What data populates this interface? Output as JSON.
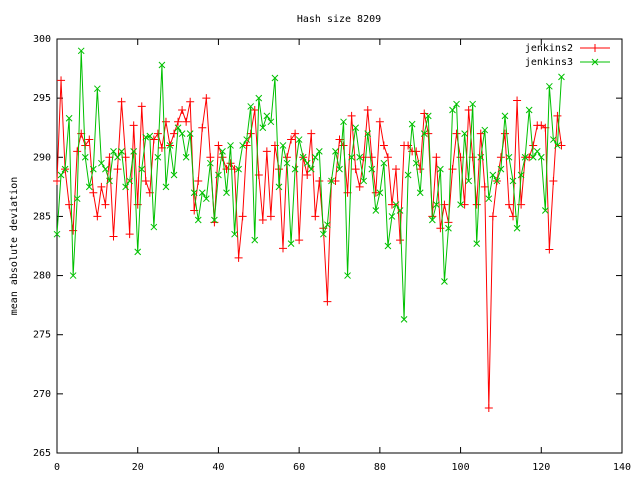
{
  "chart_data": {
    "type": "line",
    "title": "Hash size 8209",
    "y_label": "mean absolute deviation",
    "x": [
      0,
      1,
      2,
      3,
      4,
      5,
      6,
      7,
      8,
      9,
      10,
      11,
      12,
      13,
      14,
      15,
      16,
      17,
      18,
      19,
      20,
      21,
      22,
      23,
      24,
      25,
      26,
      27,
      28,
      29,
      30,
      31,
      32,
      33,
      34,
      35,
      36,
      37,
      38,
      39,
      40,
      41,
      42,
      43,
      44,
      45,
      46,
      47,
      48,
      49,
      50,
      51,
      52,
      53,
      54,
      55,
      56,
      57,
      58,
      59,
      60,
      61,
      62,
      63,
      64,
      65,
      66,
      67,
      68,
      69,
      70,
      71,
      72,
      73,
      74,
      75,
      76,
      77,
      78,
      79,
      80,
      81,
      82,
      83,
      84,
      85,
      86,
      87,
      88,
      89,
      90,
      91,
      92,
      93,
      94,
      95,
      96,
      97,
      98,
      99,
      100,
      101,
      102,
      103,
      104,
      105,
      106,
      107,
      108,
      109,
      110,
      111,
      112,
      113,
      114,
      115,
      116,
      117,
      118,
      119,
      120,
      121,
      122,
      123,
      124,
      125
    ],
    "series": [
      {
        "name": "jenkins2",
        "color": "#ff0000",
        "marker": "plus",
        "values": [
          288,
          296.5,
          289,
          286,
          283.8,
          290.5,
          292,
          291,
          291.5,
          287,
          285,
          287.5,
          286,
          290,
          283.3,
          289,
          294.7,
          290,
          283.5,
          292.7,
          286,
          294.3,
          288,
          287,
          291.5,
          292,
          290.8,
          293,
          291,
          292,
          293,
          294,
          293,
          294.7,
          285.5,
          288,
          292.5,
          295,
          290,
          284.5,
          291,
          290,
          289,
          289.5,
          289,
          281.5,
          285,
          291,
          292,
          294,
          288.5,
          284.7,
          290.5,
          285,
          291,
          289,
          282.3,
          290,
          291.5,
          292,
          283,
          290,
          288.5,
          292,
          285,
          288,
          284,
          277.8,
          288,
          288,
          291.5,
          291,
          287,
          293.5,
          289,
          287.5,
          290,
          294,
          290,
          287,
          293,
          291,
          290,
          286,
          289,
          283,
          291,
          291,
          290.5,
          290.5,
          289,
          293.7,
          292,
          285,
          290,
          284,
          286,
          284.5,
          289,
          292,
          290,
          286,
          294,
          290,
          286,
          292,
          287.5,
          268.8,
          285,
          288,
          290,
          292,
          286,
          285,
          294.8,
          286,
          290,
          290,
          291,
          292.7,
          292.7,
          292.5,
          282.2,
          288,
          293.5,
          291
        ]
      },
      {
        "name": "jenkins3",
        "color": "#00c000",
        "marker": "cross",
        "values": [
          283.5,
          288.5,
          289,
          293.3,
          280,
          286.5,
          299,
          290,
          287.5,
          289,
          295.8,
          289.5,
          289,
          288,
          290.5,
          290,
          290.5,
          287.5,
          288,
          290.5,
          282,
          289,
          291.7,
          291.8,
          284.1,
          290,
          297.8,
          287.5,
          291,
          288.5,
          292.5,
          292,
          290,
          292,
          287,
          284.7,
          287,
          286.5,
          289.5,
          284.7,
          288.5,
          290.5,
          287,
          291,
          283.5,
          289,
          291,
          291.5,
          294.3,
          283,
          295,
          292.5,
          293.5,
          293,
          296.7,
          287.5,
          291,
          289.5,
          282.7,
          289,
          291.5,
          290,
          289.5,
          289,
          290,
          290.5,
          283.5,
          284.3,
          288,
          290.5,
          289,
          293,
          280,
          290,
          292.5,
          290,
          288,
          292,
          289,
          285.5,
          287,
          289.5,
          282.5,
          285,
          286,
          285.5,
          276.3,
          288.5,
          292.8,
          289.5,
          287,
          292,
          293.5,
          284.7,
          286,
          289,
          279.5,
          284,
          294,
          294.5,
          286,
          292,
          288,
          294.5,
          282.7,
          290,
          292.3,
          286.5,
          288.5,
          288,
          289,
          293.5,
          290,
          288,
          284,
          288.5,
          290,
          294,
          290,
          290.5,
          290,
          285.5,
          296,
          291.5,
          291,
          296.8
        ]
      }
    ],
    "xlim": [
      0,
      140
    ],
    "xticks": [
      0,
      20,
      40,
      60,
      80,
      100,
      120,
      140
    ],
    "ylim": [
      265,
      300
    ],
    "yticks": [
      265,
      270,
      275,
      280,
      285,
      290,
      295,
      300
    ],
    "legend": "top-right",
    "grid": false
  }
}
